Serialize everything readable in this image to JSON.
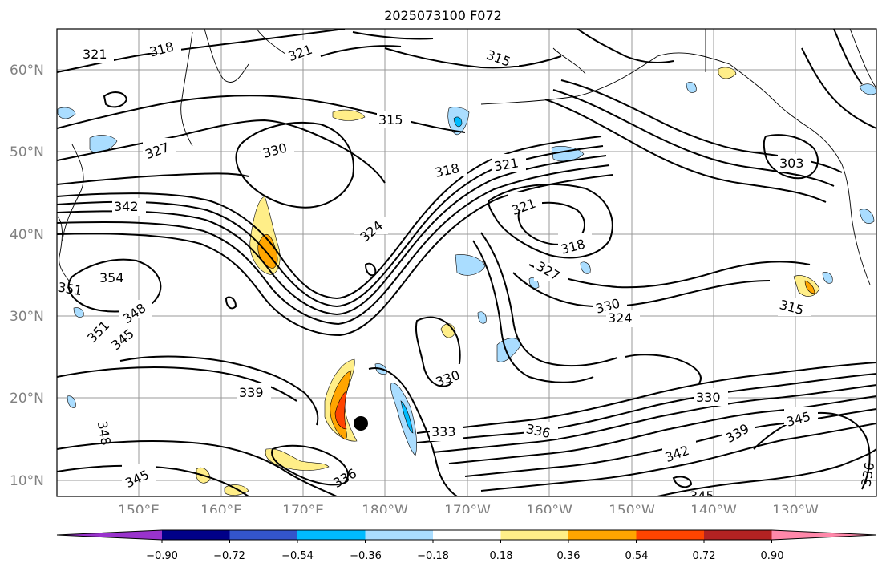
{
  "title": "2025073100 F072",
  "map": {
    "lat_labels": [
      "60°N",
      "50°N",
      "40°N",
      "30°N",
      "20°N",
      "10°N"
    ],
    "lon_labels": [
      "150°E",
      "160°E",
      "170°E",
      "180°W",
      "170°W",
      "160°W",
      "150°W",
      "140°W",
      "130°W"
    ],
    "contour_labels": [
      "321",
      "318",
      "321",
      "315",
      "315",
      "318",
      "321",
      "327",
      "330",
      "342",
      "354",
      "351",
      "348",
      "351",
      "345",
      "339",
      "324",
      "321",
      "318",
      "327",
      "330",
      "324",
      "315",
      "303",
      "330",
      "333",
      "336",
      "342",
      "339",
      "345",
      "330",
      "336",
      "345",
      "348",
      "345",
      "336"
    ],
    "marker": "black-dot"
  },
  "colorbar": {
    "colors": [
      "#9933cc",
      "#000088",
      "#3355cc",
      "#00bbff",
      "#aaddff",
      "#ffffff",
      "#ffee88",
      "#ffa500",
      "#ff4400",
      "#b22222",
      "#ff88aa"
    ],
    "tick_labels": [
      "−0.90",
      "−0.72",
      "−0.54",
      "−0.36",
      "−0.18",
      "0.18",
      "0.36",
      "0.54",
      "0.72",
      "0.90"
    ]
  }
}
